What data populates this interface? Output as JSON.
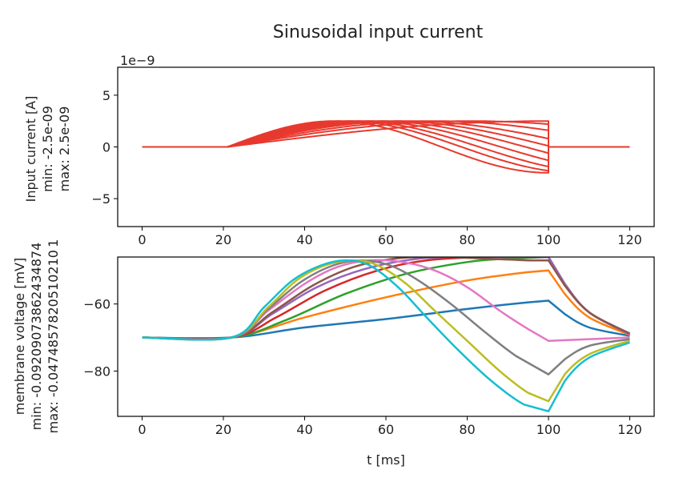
{
  "figure": {
    "title": "Sinusoidal input current",
    "top_offset_label": "1e−9",
    "bottom_xlabel": "t [ms]"
  },
  "chart_data": [
    {
      "type": "line",
      "ylabel_lines": [
        "Input current [A]",
        "min: -2.5e-09",
        "max: 2.5e-09"
      ],
      "xlim": [
        -6,
        126
      ],
      "ylim": [
        -7.7,
        7.7
      ],
      "xticks": [
        "0",
        "20",
        "40",
        "60",
        "80",
        "100",
        "120"
      ],
      "yticks": [
        {
          "value": 5,
          "label": "5"
        },
        {
          "value": 0,
          "label": "0"
        },
        {
          "value": -5,
          "label": "−5"
        }
      ],
      "grid": false,
      "color": "#e8392e",
      "pulse_start_ms": 21,
      "pulse_end_ms": 100,
      "t_end_ms": 120,
      "amplitude_e9": 2.5,
      "series_end_values_e9": [
        2.5,
        2.2,
        1.6,
        0.8,
        0.1,
        -0.6,
        -1.3,
        -1.9,
        -2.3,
        -2.5
      ]
    },
    {
      "type": "line",
      "ylabel_lines": [
        "membrane voltage [mV]",
        "min: -0.09209073862434874",
        "max: -0.0474857820510210 1"
      ],
      "xlabel": "t [ms]",
      "xlim": [
        -6,
        126
      ],
      "ylim": [
        -93.5,
        -46
      ],
      "xticks": [
        "0",
        "20",
        "40",
        "60",
        "80",
        "100",
        "120"
      ],
      "yticks": [
        {
          "value": -60,
          "label": "−60"
        },
        {
          "value": -80,
          "label": "−80"
        }
      ],
      "grid": false,
      "rest_mV": -70,
      "rise_start_ms": 22,
      "series": [
        {
          "color": "#1f77b4",
          "points": [
            [
              0,
              -70
            ],
            [
              22,
              -70
            ],
            [
              40,
              -67
            ],
            [
              60,
              -64.5
            ],
            [
              80,
              -61.5
            ],
            [
              95,
              -59.5
            ],
            [
              100,
              -59
            ],
            [
              104,
              -63
            ],
            [
              110,
              -67
            ],
            [
              120,
              -69.5
            ]
          ]
        },
        {
          "color": "#ff7f0e",
          "points": [
            [
              0,
              -70
            ],
            [
              22,
              -70
            ],
            [
              40,
              -64
            ],
            [
              60,
              -58
            ],
            [
              80,
              -53
            ],
            [
              95,
              -50.5
            ],
            [
              100,
              -50
            ],
            [
              104,
              -57
            ],
            [
              110,
              -64
            ],
            [
              120,
              -69.2
            ]
          ]
        },
        {
          "color": "#2ca02c",
          "points": [
            [
              0,
              -70
            ],
            [
              22,
              -70
            ],
            [
              35,
              -65
            ],
            [
              50,
              -57
            ],
            [
              65,
              -51
            ],
            [
              80,
              -47.5
            ],
            [
              90,
              -46.5
            ],
            [
              100,
              -46
            ],
            [
              104,
              -54
            ],
            [
              110,
              -62.5
            ],
            [
              120,
              -69
            ]
          ]
        },
        {
          "color": "#d62728",
          "points": [
            [
              0,
              -70
            ],
            [
              22,
              -70
            ],
            [
              33,
              -64
            ],
            [
              45,
              -56
            ],
            [
              58,
              -50
            ],
            [
              70,
              -47
            ],
            [
              85,
              -46
            ],
            [
              100,
              -46
            ],
            [
              104,
              -54
            ],
            [
              110,
              -62.5
            ],
            [
              120,
              -69
            ]
          ]
        },
        {
          "color": "#9467bd",
          "points": [
            [
              0,
              -70
            ],
            [
              22,
              -70
            ],
            [
              32,
              -63
            ],
            [
              43,
              -55
            ],
            [
              55,
              -49.5
            ],
            [
              68,
              -46.5
            ],
            [
              80,
              -46
            ],
            [
              92,
              -46
            ],
            [
              100,
              -46
            ],
            [
              104,
              -54
            ],
            [
              110,
              -62.5
            ],
            [
              120,
              -69
            ]
          ]
        },
        {
          "color": "#8c564b",
          "points": [
            [
              0,
              -70
            ],
            [
              22,
              -70
            ],
            [
              32,
              -62.5
            ],
            [
              42,
              -54.5
            ],
            [
              52,
              -49
            ],
            [
              62,
              -46.5
            ],
            [
              72,
              -46
            ],
            [
              85,
              -46.5
            ],
            [
              95,
              -47
            ],
            [
              100,
              -47
            ],
            [
              104,
              -54.5
            ],
            [
              110,
              -62.5
            ],
            [
              120,
              -68.8
            ]
          ]
        },
        {
          "color": "#e377c2",
          "points": [
            [
              0,
              -70
            ],
            [
              22,
              -70
            ],
            [
              31,
              -62
            ],
            [
              40,
              -54
            ],
            [
              48,
              -49
            ],
            [
              56,
              -47
            ],
            [
              64,
              -47.5
            ],
            [
              72,
              -50
            ],
            [
              80,
              -55
            ],
            [
              88,
              -62
            ],
            [
              95,
              -67.5
            ],
            [
              100,
              -71
            ],
            [
              110,
              -70.5
            ],
            [
              120,
              -70
            ]
          ]
        },
        {
          "color": "#7f7f7f",
          "points": [
            [
              0,
              -70
            ],
            [
              22,
              -70
            ],
            [
              31,
              -61.5
            ],
            [
              39,
              -53.5
            ],
            [
              47,
              -48.5
            ],
            [
              54,
              -47
            ],
            [
              61,
              -48.5
            ],
            [
              68,
              -53
            ],
            [
              76,
              -60
            ],
            [
              84,
              -68
            ],
            [
              92,
              -75.5
            ],
            [
              100,
              -81
            ],
            [
              104,
              -76.5
            ],
            [
              110,
              -72.5
            ],
            [
              120,
              -70.5
            ]
          ]
        },
        {
          "color": "#bcbd22",
          "points": [
            [
              0,
              -70
            ],
            [
              22,
              -70
            ],
            [
              31,
              -61
            ],
            [
              38,
              -53
            ],
            [
              45,
              -48.5
            ],
            [
              52,
              -47
            ],
            [
              58,
              -48.5
            ],
            [
              65,
              -54
            ],
            [
              72,
              -62
            ],
            [
              80,
              -71
            ],
            [
              88,
              -80
            ],
            [
              95,
              -86.5
            ],
            [
              100,
              -89
            ],
            [
              104,
              -81
            ],
            [
              110,
              -75
            ],
            [
              120,
              -71
            ]
          ]
        },
        {
          "color": "#17becf",
          "points": [
            [
              0,
              -70
            ],
            [
              22,
              -70
            ],
            [
              30,
              -61
            ],
            [
              37,
              -53
            ],
            [
              44,
              -48.5
            ],
            [
              50,
              -47
            ],
            [
              56,
              -48.5
            ],
            [
              63,
              -55
            ],
            [
              70,
              -64
            ],
            [
              78,
              -74
            ],
            [
              86,
              -83
            ],
            [
              94,
              -90
            ],
            [
              100,
              -92
            ],
            [
              104,
              -83
            ],
            [
              110,
              -76
            ],
            [
              120,
              -71.5
            ]
          ]
        }
      ]
    }
  ]
}
